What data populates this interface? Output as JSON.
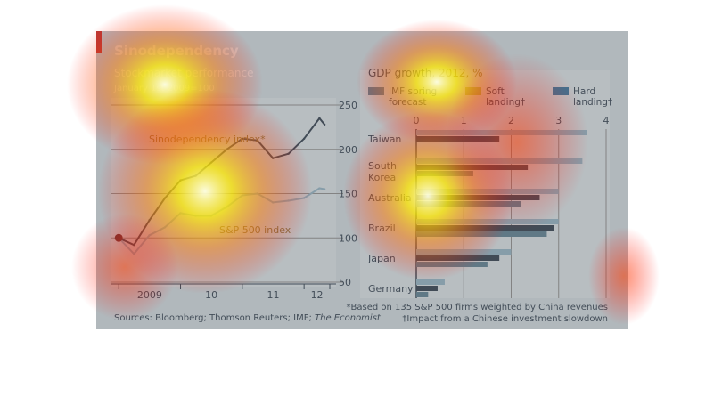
{
  "figure": {
    "title": "Sinodependency",
    "sources_prefix": "Sources: Bloomberg; Thomson Reuters; IMF; ",
    "sources_italic": "The Economist",
    "footnote1": "*Based on 135 S&P 500 firms weighted by China revenues",
    "footnote2": "†Impact from a Chinese investment slowdown",
    "colors": {
      "accent": "#e3120b",
      "dark": "#1f3042",
      "mid": "#527a8f",
      "light": "#8fb3c7",
      "green": "#a9b740",
      "bg": "#d3dfe6"
    }
  },
  "chart_data": [
    {
      "type": "line",
      "title": "Stockmarket performance",
      "subtitle": "January 1st 2009=100",
      "x_tick_labels": [
        "2009",
        "10",
        "11",
        "12"
      ],
      "y_ticks": [
        50,
        100,
        150,
        200,
        250
      ],
      "ylim": [
        50,
        250
      ],
      "x": [
        "2009-01",
        "2009-04",
        "2009-07",
        "2009-10",
        "2010-01",
        "2010-04",
        "2010-07",
        "2010-10",
        "2011-01",
        "2011-04",
        "2011-07",
        "2011-10",
        "2012-01",
        "2012-04",
        "2012-05"
      ],
      "series": [
        {
          "name": "Sinodependency index*",
          "values": [
            100,
            92,
            120,
            145,
            165,
            170,
            185,
            200,
            212,
            210,
            190,
            195,
            212,
            235,
            228
          ]
        },
        {
          "name": "S&P 500 index",
          "values": [
            100,
            82,
            103,
            112,
            128,
            125,
            125,
            135,
            148,
            150,
            140,
            142,
            145,
            156,
            155
          ]
        }
      ]
    },
    {
      "type": "bar",
      "orientation": "horizontal",
      "title": "GDP growth",
      "title_suffix": ", 2012, %",
      "categories": [
        "Taiwan",
        "South Korea",
        "Australia",
        "Brazil",
        "Japan",
        "Germany"
      ],
      "category_lines": [
        [
          "Taiwan"
        ],
        [
          "South",
          "Korea"
        ],
        [
          "Australia"
        ],
        [
          "Brazil"
        ],
        [
          "Japan"
        ],
        [
          "Germany"
        ]
      ],
      "x_ticks": [
        "0",
        "1",
        "2",
        "3",
        "4"
      ],
      "xlim": [
        0,
        4
      ],
      "series": [
        {
          "name": "IMF spring forecast",
          "legend_lines": [
            "IMF spring",
            "forecast"
          ],
          "values": [
            3.6,
            3.5,
            3.0,
            3.0,
            2.0,
            0.6
          ]
        },
        {
          "name": "Soft landing†",
          "legend_lines": [
            "Soft",
            "landing†"
          ],
          "values": [
            1.75,
            2.35,
            2.6,
            2.9,
            1.75,
            0.45
          ]
        },
        {
          "name": "Hard landing†",
          "legend_lines": [
            "Hard",
            "landing†"
          ],
          "values": [
            0.0,
            1.2,
            2.2,
            2.75,
            1.5,
            0.25
          ]
        }
      ]
    }
  ]
}
